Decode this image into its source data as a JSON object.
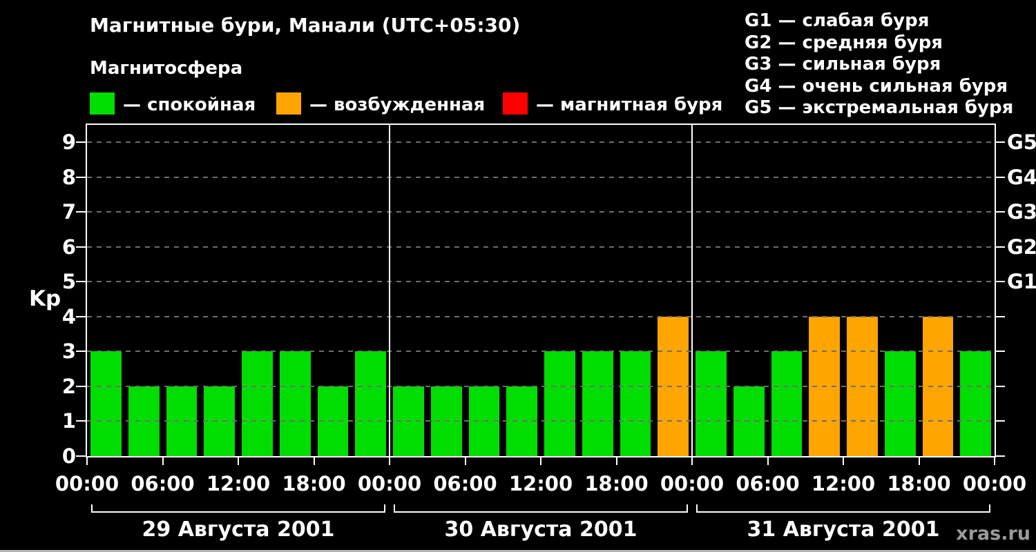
{
  "title": "Магнитные бури, Манали (UTC+05:30)",
  "legend": {
    "heading": "Магнитосфера",
    "items": [
      {
        "label": "— спокойная",
        "color": "#00dd00"
      },
      {
        "label": "— возбужденная",
        "color": "#ffa500"
      },
      {
        "label": "— магнитная буря",
        "color": "#ff0000"
      }
    ]
  },
  "storm_scale": [
    "G1 — слабая буря",
    "G2 — средняя буря",
    "G3 — сильная буря",
    "G4 — очень сильная буря",
    "G5 — экстремальная буря"
  ],
  "watermark": "xras.ru",
  "chart_data": {
    "type": "bar",
    "title": "Магнитные бури, Манали (UTC+05:30)",
    "ylabel": "Kp",
    "ylim": [
      0,
      9.5
    ],
    "yticks": [
      0,
      1,
      2,
      3,
      4,
      5,
      6,
      7,
      8,
      9
    ],
    "grid": "horizontal-dashed",
    "bar_interval_hours": 3,
    "right_axis": [
      {
        "kp": 5,
        "label": "G1"
      },
      {
        "kp": 6,
        "label": "G2"
      },
      {
        "kp": 7,
        "label": "G3"
      },
      {
        "kp": 8,
        "label": "G4"
      },
      {
        "kp": 9,
        "label": "G5"
      }
    ],
    "x_tick_labels": [
      "00:00",
      "06:00",
      "12:00",
      "18:00",
      "00:00",
      "06:00",
      "12:00",
      "18:00",
      "00:00",
      "06:00",
      "12:00",
      "18:00",
      "00:00"
    ],
    "days": [
      {
        "label": "29 Августа 2001",
        "values": [
          3,
          2,
          2,
          2,
          3,
          3,
          2,
          3
        ]
      },
      {
        "label": "30 Августа 2001",
        "values": [
          2,
          2,
          2,
          2,
          3,
          3,
          3,
          4
        ]
      },
      {
        "label": "31 Августа 2001",
        "values": [
          3,
          2,
          3,
          4,
          4,
          3,
          4,
          3
        ]
      }
    ],
    "colors": {
      "quiet": "#00dd00",
      "excited": "#ffa500",
      "storm": "#ff0000"
    },
    "color_thresholds": {
      "quiet_max": 3,
      "excited_max": 4
    }
  }
}
